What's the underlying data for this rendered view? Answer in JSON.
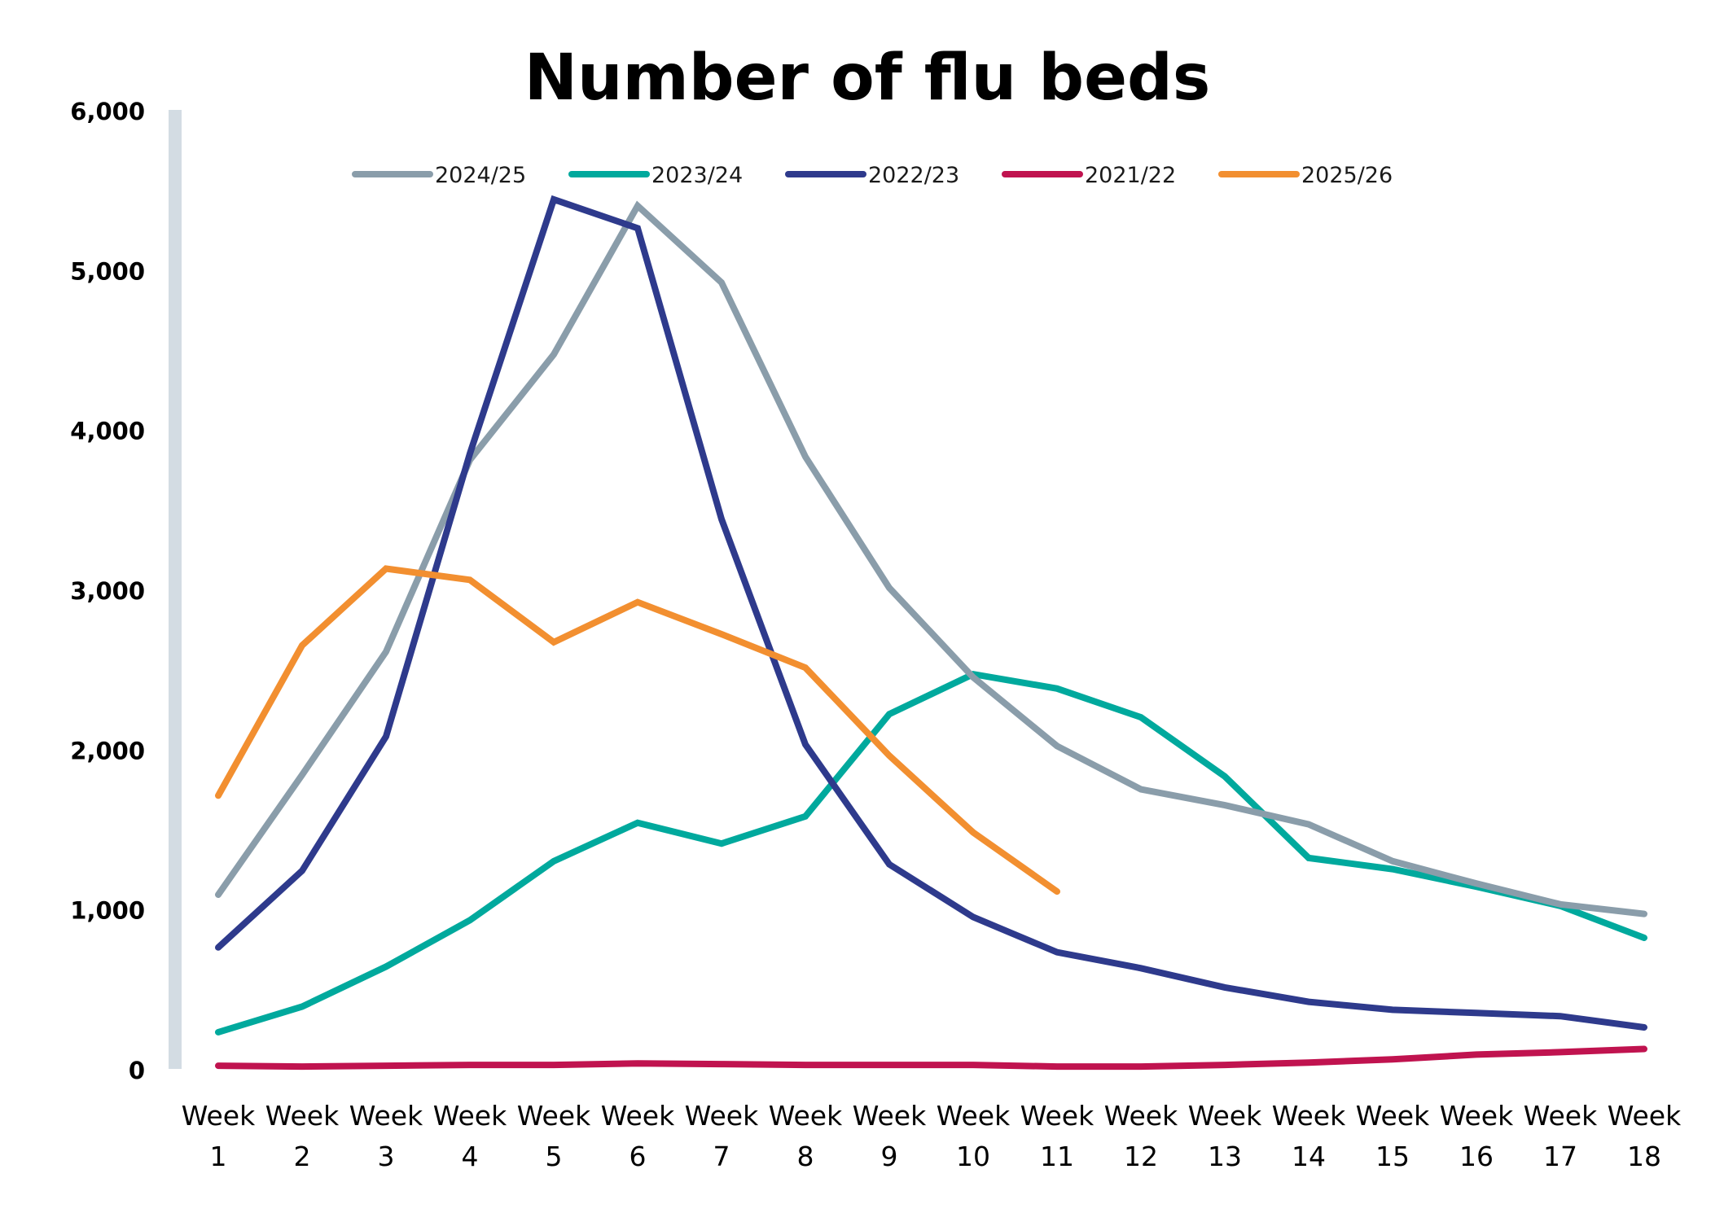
{
  "chart_data": {
    "type": "line",
    "title": "Number of flu beds",
    "xlabel": "",
    "ylabel": "",
    "categories": [
      "Week 1",
      "Week 2",
      "Week 3",
      "Week 4",
      "Week 5",
      "Week 6",
      "Week 7",
      "Week 8",
      "Week 9",
      "Week 10",
      "Week 11",
      "Week 12",
      "Week 13",
      "Week 14",
      "Week 15",
      "Week 16",
      "Week 17",
      "Week 18"
    ],
    "ylim": [
      0,
      6000
    ],
    "yticks": [
      0,
      1000,
      2000,
      3000,
      4000,
      5000,
      6000
    ],
    "ytick_labels": [
      "0",
      "1,000",
      "2,000",
      "3,000",
      "4,000",
      "5,000",
      "6,000"
    ],
    "grid": false,
    "legend_position": "top",
    "series": [
      {
        "name": "2024/25",
        "color": "#8A9DAA",
        "values": [
          1100,
          1850,
          2620,
          3820,
          4480,
          5410,
          4930,
          3840,
          3020,
          2460,
          2030,
          1760,
          1660,
          1540,
          1310,
          1170,
          1040,
          980
        ]
      },
      {
        "name": "2023/24",
        "color": "#00A99D",
        "values": [
          240,
          400,
          650,
          940,
          1310,
          1550,
          1420,
          1590,
          2230,
          2480,
          2390,
          2210,
          1840,
          1330,
          1260,
          1150,
          1030,
          830
        ]
      },
      {
        "name": "2022/23",
        "color": "#2E3A8C",
        "values": [
          770,
          1250,
          2090,
          3860,
          5450,
          5270,
          3450,
          2040,
          1290,
          960,
          740,
          640,
          520,
          430,
          380,
          360,
          340,
          270
        ]
      },
      {
        "name": "2021/22",
        "color": "#C0134F",
        "values": [
          30,
          25,
          30,
          35,
          35,
          45,
          40,
          35,
          35,
          35,
          25,
          25,
          35,
          50,
          70,
          100,
          115,
          135
        ]
      },
      {
        "name": "2025/26",
        "color": "#F28F30",
        "values": [
          1720,
          2660,
          3140,
          3070,
          2680,
          2930,
          2730,
          2520,
          1970,
          1490,
          1120,
          null,
          null,
          null,
          null,
          null,
          null,
          null
        ]
      }
    ]
  }
}
